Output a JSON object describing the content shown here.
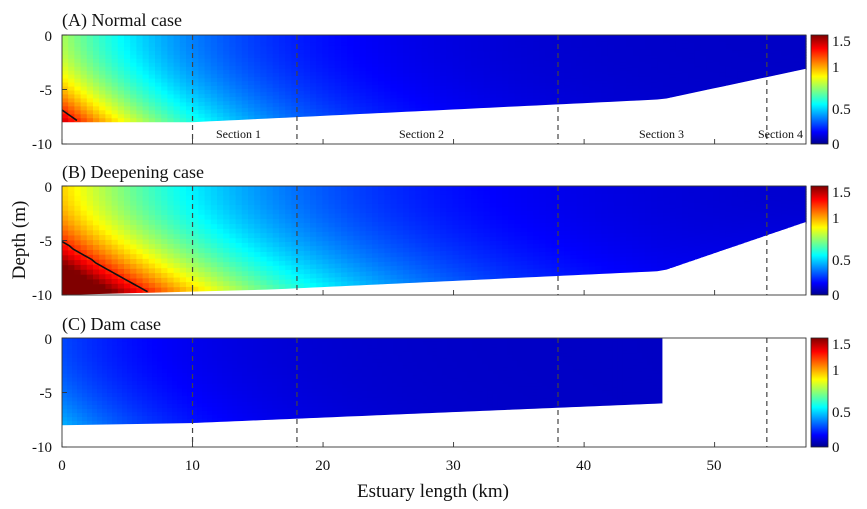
{
  "chart_data": {
    "type": "heatmap",
    "xlabel": "Estuary length (km)",
    "ylabel": "Depth (m)",
    "xlim": [
      0,
      57
    ],
    "ylim": [
      -10,
      0
    ],
    "xticks": [
      "0",
      "10",
      "20",
      "30",
      "40",
      "50"
    ],
    "yticks": [
      "0",
      "-5",
      "-10"
    ],
    "colorbar": {
      "min": 0,
      "max": 1.5,
      "ticks": [
        "0",
        "0.5",
        "1",
        "1.5"
      ],
      "colormap": "jet"
    },
    "section_lines_km": [
      10,
      18,
      38,
      54
    ],
    "section_labels": [
      {
        "text": "Section 1",
        "x_km": 14
      },
      {
        "text": "Section 2",
        "x_km": 28
      },
      {
        "text": "Section 3",
        "x_km": 46
      },
      {
        "text": "Section 4",
        "x_km": 55.6
      }
    ],
    "panels": [
      {
        "title": "(A) Normal case",
        "show_section_labels": true,
        "bathymetry": [
          [
            0,
            -8
          ],
          [
            10,
            -8
          ],
          [
            46,
            -5.9
          ],
          [
            57,
            -3.1
          ]
        ],
        "x_end_km": 57,
        "value_model": {
          "v0": 1.4,
          "bottom_gain": 0.35,
          "x_decay_km": 10.5,
          "floor": 0.1
        },
        "contour_level": 1.25
      },
      {
        "title": "(B) Deepening case",
        "show_section_labels": false,
        "bathymetry": [
          [
            0,
            -10
          ],
          [
            16,
            -9.5
          ],
          [
            46,
            -7.8
          ],
          [
            57,
            -3.3
          ]
        ],
        "x_end_km": 57,
        "value_model": {
          "v0": 1.75,
          "bottom_gain": 0.45,
          "x_decay_km": 14,
          "floor": 0.1
        },
        "contour_level": 1.25
      },
      {
        "title": "(C) Dam case",
        "show_section_labels": false,
        "bathymetry": [
          [
            0,
            -8
          ],
          [
            10,
            -7.8
          ],
          [
            46,
            -6
          ]
        ],
        "x_end_km": 46,
        "value_model": {
          "v0": 0.45,
          "bottom_gain": 0.35,
          "x_decay_km": 9,
          "floor": 0.1
        },
        "contour_level": null
      }
    ]
  }
}
